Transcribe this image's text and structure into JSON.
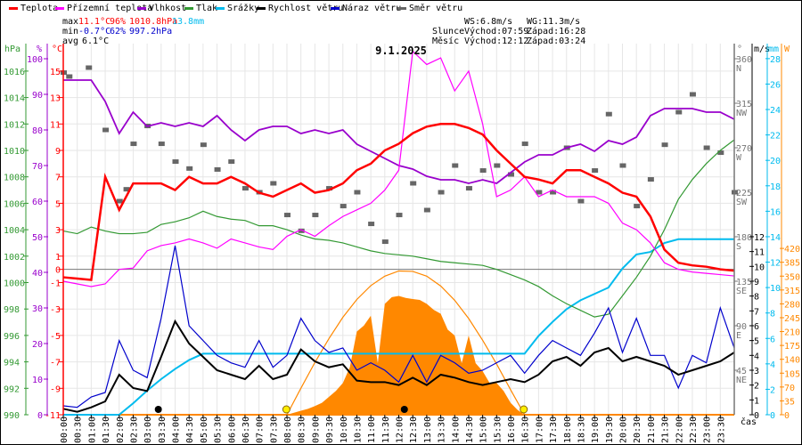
{
  "legend": [
    {
      "label": "Teplota",
      "color": "#ff0000"
    },
    {
      "label": "Přízemní teplota",
      "color": "#ff00ff"
    },
    {
      "label": "Vlhkost",
      "color": "#9900cc"
    },
    {
      "label": "Tlak",
      "color": "#339933"
    },
    {
      "label": "Srážky",
      "color": "#00bbee"
    },
    {
      "label": "Rychlost větru",
      "color": "#000000"
    },
    {
      "label": "Náraz větru",
      "color": "#0000cc"
    },
    {
      "label": "Směr větru",
      "color": "#666666"
    }
  ],
  "stats": {
    "max_label": "max",
    "max_temp": "11.1°C",
    "max_hum": "96%",
    "max_press": "1010.8hPa",
    "max_rain": "13.8mm",
    "min_label": "min",
    "min_temp": "-0.7°C",
    "min_hum": "62%",
    "min_press": "997.2hPa",
    "avg_label": "avg",
    "avg_temp": "6.1°C"
  },
  "info": {
    "ws": "WS:6.8m/s",
    "wg": "WG:11.3m/s",
    "sun_label": "Slunce",
    "sunrise": "Východ:07:59",
    "sunset": "Západ:16:28",
    "moon_label": "Měsíc",
    "moonrise": "Východ:12:12",
    "moonset": "Západ:03:24"
  },
  "chart_data": {
    "type": "line",
    "title": "9.1.2025",
    "xlabel": "čas",
    "x_step_hours": 0.5,
    "x_ticks": [
      "00:00",
      "00:30",
      "01:00",
      "01:30",
      "02:00",
      "02:30",
      "03:00",
      "03:30",
      "04:00",
      "04:30",
      "05:00",
      "05:30",
      "06:00",
      "06:30",
      "07:00",
      "07:30",
      "08:00",
      "08:30",
      "09:00",
      "09:30",
      "10:00",
      "10:30",
      "11:00",
      "11:30",
      "12:00",
      "12:30",
      "13:00",
      "13:30",
      "14:00",
      "14:30",
      "15:00",
      "15:30",
      "16:00",
      "16:30",
      "17:00",
      "17:30",
      "18:00",
      "18:30",
      "19:00",
      "19:30",
      "20:00",
      "20:30",
      "21:00",
      "21:30",
      "22:00",
      "22:30",
      "23:00",
      "23:30"
    ],
    "axes": {
      "pressure": {
        "unit": "hPa",
        "range": [
          990,
          1016
        ],
        "ticks": [
          990,
          992,
          994,
          996,
          998,
          1000,
          1002,
          1004,
          1006,
          1008,
          1010,
          1012,
          1014,
          1016
        ]
      },
      "humidity": {
        "unit": "%",
        "range": [
          0,
          100
        ],
        "ticks": [
          0,
          10,
          20,
          30,
          40,
          50,
          60,
          70,
          80,
          90,
          100
        ]
      },
      "temperature": {
        "unit": "°C",
        "range": [
          -11,
          15
        ],
        "ticks": [
          15,
          13,
          11,
          9,
          7,
          5,
          3,
          1,
          0,
          -1,
          -3,
          -5,
          -7,
          -9,
          -11
        ]
      },
      "direction": {
        "unit": "°",
        "range": [
          0,
          360
        ],
        "ticks": [
          {
            "v": 360,
            "l": "N"
          },
          {
            "v": 315,
            "l": "NW"
          },
          {
            "v": 270,
            "l": "W"
          },
          {
            "v": 225,
            "l": "SW"
          },
          {
            "v": 180,
            "l": "S"
          },
          {
            "v": 135,
            "l": "SE"
          },
          {
            "v": 90,
            "l": "E"
          },
          {
            "v": 45,
            "l": "NE"
          }
        ]
      },
      "wind": {
        "unit": "m/s",
        "range": [
          0,
          24
        ],
        "ticks": [
          0,
          1,
          2,
          3,
          4,
          5,
          6,
          7,
          8,
          9,
          10,
          11,
          12
        ]
      },
      "rain": {
        "unit": "mm",
        "range": [
          0,
          28
        ],
        "ticks": [
          0,
          2,
          4,
          6,
          8,
          10,
          12,
          14,
          16,
          18,
          20,
          22,
          24,
          26,
          28
        ]
      },
      "solar": {
        "unit": "W",
        "range": [
          0,
          900
        ],
        "ticks": [
          0,
          35,
          70,
          105,
          140,
          175,
          210,
          245,
          280,
          315,
          350,
          385,
          420
        ]
      }
    },
    "series": [
      {
        "name": "Teplota",
        "axis": "temperature",
        "color": "#ff0000",
        "values": [
          -0.6,
          -0.7,
          -0.8,
          7.0,
          4.5,
          6.5,
          6.5,
          6.5,
          6.0,
          7.0,
          6.5,
          6.5,
          7.0,
          6.5,
          5.8,
          5.5,
          6.0,
          6.5,
          5.8,
          6.0,
          6.5,
          7.5,
          8.0,
          9.0,
          9.5,
          10.3,
          10.8,
          11.0,
          11.0,
          10.7,
          10.2,
          9.0,
          8.0,
          7.0,
          6.8,
          6.5,
          7.5,
          7.5,
          7.0,
          6.5,
          5.8,
          5.5,
          4.0,
          1.5,
          0.5,
          0.3,
          0.2,
          0.0,
          -0.1
        ]
      },
      {
        "name": "Přízemní teplota",
        "axis": "temperature",
        "color": "#ff00ff",
        "values": [
          -0.9,
          -1.1,
          -1.3,
          -1.1,
          0.0,
          0.1,
          1.4,
          1.8,
          2.0,
          2.3,
          2.0,
          1.6,
          2.3,
          2.0,
          1.7,
          1.5,
          2.5,
          3.0,
          2.5,
          3.3,
          4.0,
          4.5,
          5.0,
          6.0,
          7.5,
          16.5,
          15.5,
          16.0,
          13.5,
          15.0,
          11.0,
          5.5,
          6.0,
          7.0,
          5.5,
          6.0,
          5.5,
          5.5,
          5.5,
          5.0,
          3.5,
          3.0,
          2.0,
          0.5,
          0.0,
          -0.2,
          -0.3,
          -0.4,
          -0.5
        ]
      },
      {
        "name": "Vlhkost",
        "axis": "humidity",
        "color": "#9900cc",
        "values": [
          94,
          94,
          94,
          88,
          79,
          85,
          81,
          82,
          81,
          82,
          81,
          84,
          80,
          77,
          80,
          81,
          81,
          79,
          80,
          79,
          80,
          76,
          74,
          72,
          70,
          69,
          67,
          66,
          66,
          65,
          66,
          65,
          68,
          71,
          73,
          73,
          75,
          76,
          74,
          77,
          76,
          78,
          84,
          86,
          86,
          86,
          85,
          85,
          83
        ]
      },
      {
        "name": "Tlak",
        "axis": "pressure",
        "color": "#339933",
        "values": [
          1003.9,
          1003.7,
          1004.2,
          1003.9,
          1003.7,
          1003.7,
          1003.8,
          1004.4,
          1004.6,
          1004.9,
          1005.4,
          1005.0,
          1004.8,
          1004.7,
          1004.3,
          1004.3,
          1004.0,
          1003.6,
          1003.3,
          1003.2,
          1003.0,
          1002.7,
          1002.4,
          1002.2,
          1002.1,
          1002.0,
          1001.8,
          1001.6,
          1001.5,
          1001.4,
          1001.3,
          1001.0,
          1000.6,
          1000.2,
          999.7,
          999.0,
          998.4,
          997.9,
          997.4,
          997.6,
          999.0,
          1000.4,
          1002.0,
          1004.0,
          1006.3,
          1007.8,
          1009.0,
          1010.0,
          1010.8
        ]
      },
      {
        "name": "Srážky",
        "axis": "rain",
        "color": "#00bbee",
        "values": [
          0,
          0,
          0,
          0,
          0,
          0.9,
          1.9,
          2.8,
          3.6,
          4.3,
          4.8,
          4.8,
          4.8,
          4.8,
          4.8,
          4.8,
          4.8,
          4.8,
          4.8,
          4.8,
          4.8,
          4.8,
          4.8,
          4.8,
          4.8,
          4.8,
          4.8,
          4.8,
          4.8,
          4.8,
          4.8,
          4.8,
          4.8,
          4.8,
          6.2,
          7.3,
          8.3,
          9.0,
          9.5,
          10.0,
          11.5,
          12.6,
          12.8,
          13.5,
          13.8,
          13.8,
          13.8,
          13.8,
          13.8
        ]
      },
      {
        "name": "Rychlost větru",
        "axis": "wind",
        "color": "#000000",
        "values": [
          0.4,
          0.2,
          0.5,
          0.9,
          2.7,
          1.8,
          1.6,
          3.9,
          6.3,
          4.8,
          3.9,
          3.0,
          2.7,
          2.4,
          3.3,
          2.4,
          2.7,
          4.4,
          3.6,
          3.2,
          3.4,
          2.3,
          2.2,
          2.2,
          2.0,
          2.5,
          2.0,
          2.7,
          2.5,
          2.2,
          2.0,
          2.2,
          2.4,
          2.2,
          2.7,
          3.6,
          3.9,
          3.3,
          4.2,
          4.5,
          3.6,
          3.9,
          3.6,
          3.3,
          2.7,
          3.0,
          3.3,
          3.6,
          4.2
        ]
      },
      {
        "name": "Náraz větru",
        "axis": "wind",
        "color": "#0000cc",
        "values": [
          0.6,
          0.5,
          1.2,
          1.5,
          5.0,
          3.0,
          2.5,
          6.5,
          11.4,
          6.0,
          5.0,
          4.0,
          3.5,
          3.2,
          5.0,
          3.2,
          4.0,
          6.5,
          5.0,
          4.2,
          4.5,
          3.0,
          3.5,
          3.0,
          2.2,
          4.0,
          2.2,
          4.0,
          3.5,
          2.8,
          3.0,
          3.5,
          4.0,
          2.8,
          4.0,
          5.0,
          4.5,
          4.0,
          5.5,
          7.2,
          4.2,
          6.5,
          4.0,
          4.0,
          1.8,
          4.0,
          3.5,
          7.2,
          4.5
        ]
      }
    ],
    "direction_points": [
      {
        "t": 0.0,
        "v": 346
      },
      {
        "t": 0.2,
        "v": 342
      },
      {
        "t": 0.9,
        "v": 351
      },
      {
        "t": 1.5,
        "v": 288
      },
      {
        "t": 2.0,
        "v": 216
      },
      {
        "t": 2.25,
        "v": 228
      },
      {
        "t": 2.5,
        "v": 274
      },
      {
        "t": 3.0,
        "v": 292
      },
      {
        "t": 3.5,
        "v": 274
      },
      {
        "t": 4.0,
        "v": 256
      },
      {
        "t": 4.5,
        "v": 249
      },
      {
        "t": 5.0,
        "v": 273
      },
      {
        "t": 5.5,
        "v": 248
      },
      {
        "t": 6.0,
        "v": 256
      },
      {
        "t": 6.5,
        "v": 229
      },
      {
        "t": 7.0,
        "v": 225
      },
      {
        "t": 7.5,
        "v": 234
      },
      {
        "t": 8.0,
        "v": 202
      },
      {
        "t": 8.5,
        "v": 186
      },
      {
        "t": 9.0,
        "v": 202
      },
      {
        "t": 9.5,
        "v": 229
      },
      {
        "t": 10.0,
        "v": 211
      },
      {
        "t": 10.5,
        "v": 225
      },
      {
        "t": 11.0,
        "v": 193
      },
      {
        "t": 11.5,
        "v": 175
      },
      {
        "t": 12.0,
        "v": 202
      },
      {
        "t": 12.5,
        "v": 234
      },
      {
        "t": 13.0,
        "v": 207
      },
      {
        "t": 13.5,
        "v": 225
      },
      {
        "t": 14.0,
        "v": 252
      },
      {
        "t": 14.5,
        "v": 229
      },
      {
        "t": 15.0,
        "v": 247
      },
      {
        "t": 15.5,
        "v": 252
      },
      {
        "t": 16.0,
        "v": 243
      },
      {
        "t": 16.5,
        "v": 274
      },
      {
        "t": 17.0,
        "v": 225
      },
      {
        "t": 17.5,
        "v": 225
      },
      {
        "t": 18.0,
        "v": 270
      },
      {
        "t": 18.5,
        "v": 216
      },
      {
        "t": 19.0,
        "v": 247
      },
      {
        "t": 19.5,
        "v": 304
      },
      {
        "t": 20.0,
        "v": 252
      },
      {
        "t": 20.5,
        "v": 211
      },
      {
        "t": 21.0,
        "v": 238
      },
      {
        "t": 21.5,
        "v": 273
      },
      {
        "t": 22.0,
        "v": 306
      },
      {
        "t": 22.5,
        "v": 324
      },
      {
        "t": 23.0,
        "v": 270
      },
      {
        "t": 23.5,
        "v": 265
      },
      {
        "t": 24.0,
        "v": 225
      }
    ],
    "solar": {
      "name": "Sluneční záření",
      "color": "#ff8800",
      "start_hour": 8.0,
      "step_hours": 0.25,
      "values": [
        0,
        5,
        10,
        15,
        22,
        30,
        45,
        60,
        80,
        120,
        210,
        225,
        250,
        130,
        280,
        297,
        300,
        295,
        292,
        290,
        280,
        265,
        255,
        215,
        200,
        130,
        200,
        130,
        110,
        80,
        80,
        60,
        30,
        12,
        0
      ]
    },
    "solar_theoretical": {
      "color": "#ff8800",
      "start_hour": 8.0,
      "step_hours": 0.5,
      "values": [
        0,
        67,
        132,
        192,
        246,
        291,
        326,
        350,
        363,
        362,
        350,
        325,
        289,
        243,
        188,
        128,
        63,
        0
      ]
    },
    "markers": {
      "sunrise_hour": 7.98,
      "sunset_hour": 16.47,
      "moonset_hour": 3.4,
      "moonrise_hour": 12.2
    }
  }
}
